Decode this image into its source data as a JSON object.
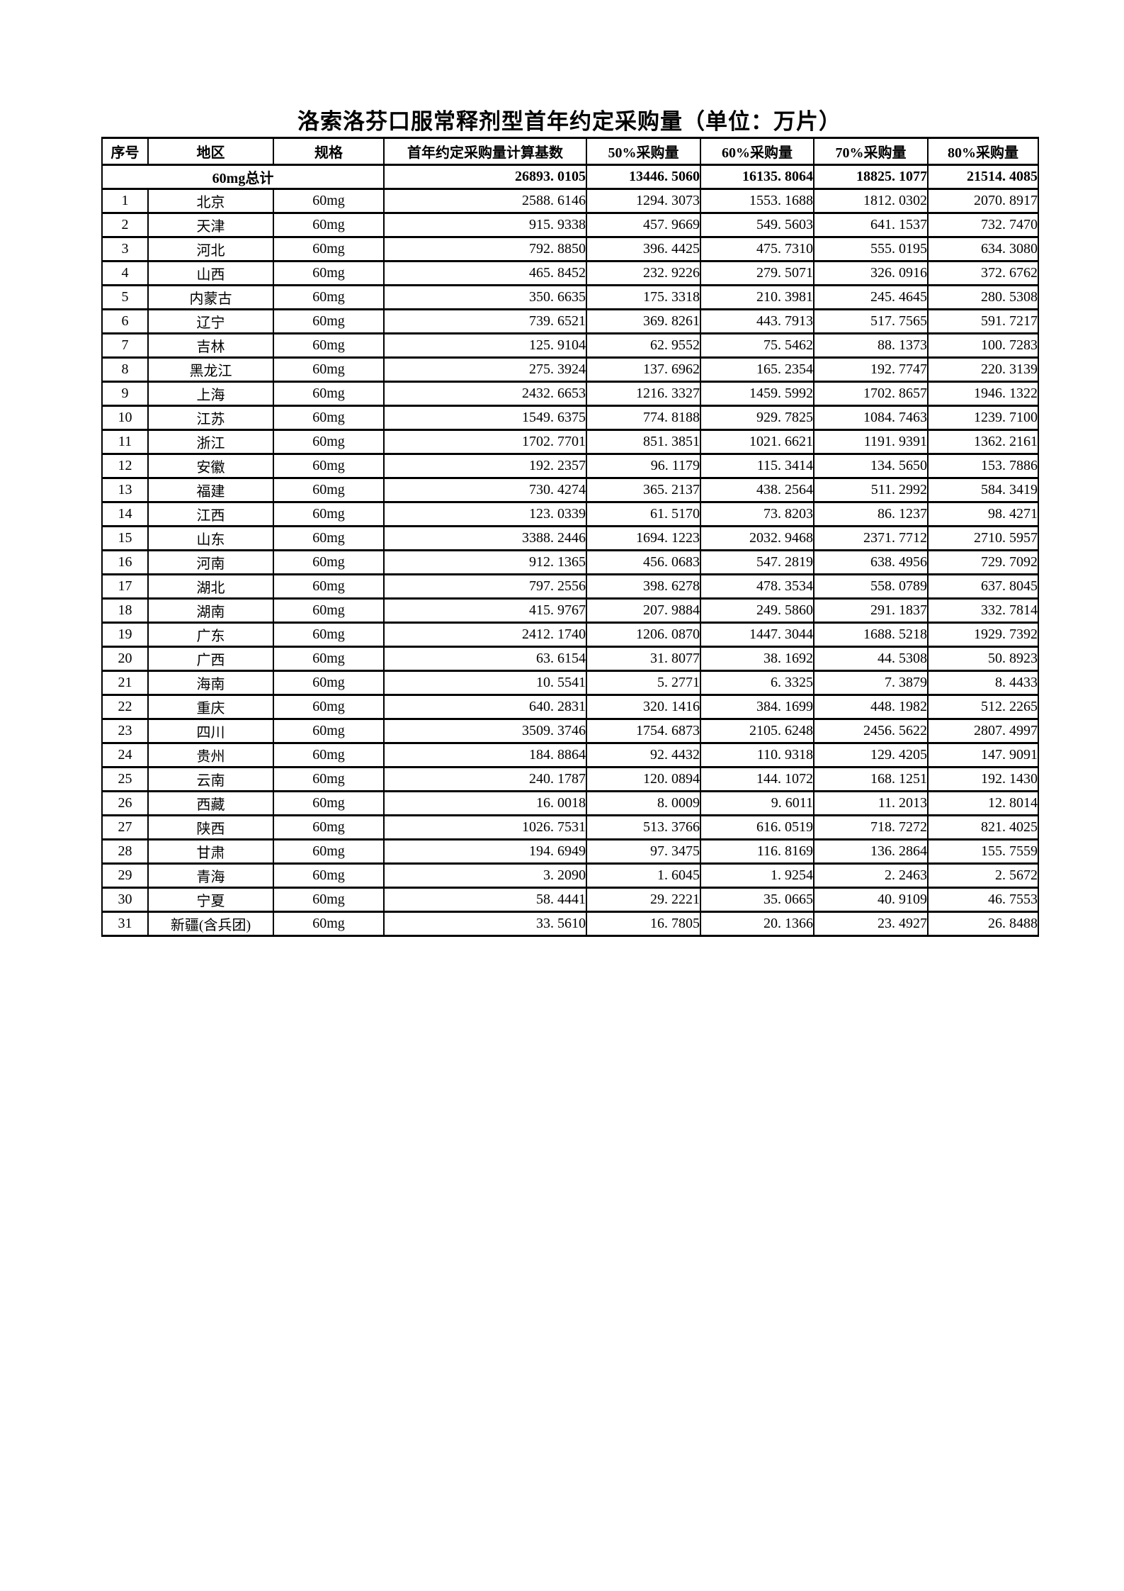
{
  "page": {
    "title": "洛索洛芬口服常释剂型首年约定采购量（单位：万片）"
  },
  "colors": {
    "text": "#000000",
    "background": "#ffffff",
    "border": "#000000"
  },
  "table": {
    "headers": [
      "序号",
      "地区",
      "规格",
      "首年约定采购量计算基数",
      "50%采购量",
      "60%采购量",
      "70%采购量",
      "80%采购量"
    ],
    "total": {
      "label": "60mg总计",
      "values": [
        "26893. 0105",
        "13446. 5060",
        "16135. 8064",
        "18825. 1077",
        "21514. 4085"
      ]
    },
    "rows": [
      {
        "no": "1",
        "region": "北京",
        "spec": "60mg",
        "values": [
          "2588. 6146",
          "1294. 3073",
          "1553. 1688",
          "1812. 0302",
          "2070. 8917"
        ]
      },
      {
        "no": "2",
        "region": "天津",
        "spec": "60mg",
        "values": [
          "915. 9338",
          "457. 9669",
          "549. 5603",
          "641. 1537",
          "732. 7470"
        ]
      },
      {
        "no": "3",
        "region": "河北",
        "spec": "60mg",
        "values": [
          "792. 8850",
          "396. 4425",
          "475. 7310",
          "555. 0195",
          "634. 3080"
        ]
      },
      {
        "no": "4",
        "region": "山西",
        "spec": "60mg",
        "values": [
          "465. 8452",
          "232. 9226",
          "279. 5071",
          "326. 0916",
          "372. 6762"
        ]
      },
      {
        "no": "5",
        "region": "内蒙古",
        "spec": "60mg",
        "values": [
          "350. 6635",
          "175. 3318",
          "210. 3981",
          "245. 4645",
          "280. 5308"
        ]
      },
      {
        "no": "6",
        "region": "辽宁",
        "spec": "60mg",
        "values": [
          "739. 6521",
          "369. 8261",
          "443. 7913",
          "517. 7565",
          "591. 7217"
        ]
      },
      {
        "no": "7",
        "region": "吉林",
        "spec": "60mg",
        "values": [
          "125. 9104",
          "62. 9552",
          "75. 5462",
          "88. 1373",
          "100. 7283"
        ]
      },
      {
        "no": "8",
        "region": "黑龙江",
        "spec": "60mg",
        "values": [
          "275. 3924",
          "137. 6962",
          "165. 2354",
          "192. 7747",
          "220. 3139"
        ]
      },
      {
        "no": "9",
        "region": "上海",
        "spec": "60mg",
        "values": [
          "2432. 6653",
          "1216. 3327",
          "1459. 5992",
          "1702. 8657",
          "1946. 1322"
        ]
      },
      {
        "no": "10",
        "region": "江苏",
        "spec": "60mg",
        "values": [
          "1549. 6375",
          "774. 8188",
          "929. 7825",
          "1084. 7463",
          "1239. 7100"
        ]
      },
      {
        "no": "11",
        "region": "浙江",
        "spec": "60mg",
        "values": [
          "1702. 7701",
          "851. 3851",
          "1021. 6621",
          "1191. 9391",
          "1362. 2161"
        ]
      },
      {
        "no": "12",
        "region": "安徽",
        "spec": "60mg",
        "values": [
          "192. 2357",
          "96. 1179",
          "115. 3414",
          "134. 5650",
          "153. 7886"
        ]
      },
      {
        "no": "13",
        "region": "福建",
        "spec": "60mg",
        "values": [
          "730. 4274",
          "365. 2137",
          "438. 2564",
          "511. 2992",
          "584. 3419"
        ]
      },
      {
        "no": "14",
        "region": "江西",
        "spec": "60mg",
        "values": [
          "123. 0339",
          "61. 5170",
          "73. 8203",
          "86. 1237",
          "98. 4271"
        ]
      },
      {
        "no": "15",
        "region": "山东",
        "spec": "60mg",
        "values": [
          "3388. 2446",
          "1694. 1223",
          "2032. 9468",
          "2371. 7712",
          "2710. 5957"
        ]
      },
      {
        "no": "16",
        "region": "河南",
        "spec": "60mg",
        "values": [
          "912. 1365",
          "456. 0683",
          "547. 2819",
          "638. 4956",
          "729. 7092"
        ]
      },
      {
        "no": "17",
        "region": "湖北",
        "spec": "60mg",
        "values": [
          "797. 2556",
          "398. 6278",
          "478. 3534",
          "558. 0789",
          "637. 8045"
        ]
      },
      {
        "no": "18",
        "region": "湖南",
        "spec": "60mg",
        "values": [
          "415. 9767",
          "207. 9884",
          "249. 5860",
          "291. 1837",
          "332. 7814"
        ]
      },
      {
        "no": "19",
        "region": "广东",
        "spec": "60mg",
        "values": [
          "2412. 1740",
          "1206. 0870",
          "1447. 3044",
          "1688. 5218",
          "1929. 7392"
        ]
      },
      {
        "no": "20",
        "region": "广西",
        "spec": "60mg",
        "values": [
          "63. 6154",
          "31. 8077",
          "38. 1692",
          "44. 5308",
          "50. 8923"
        ]
      },
      {
        "no": "21",
        "region": "海南",
        "spec": "60mg",
        "values": [
          "10. 5541",
          "5. 2771",
          "6. 3325",
          "7. 3879",
          "8. 4433"
        ]
      },
      {
        "no": "22",
        "region": "重庆",
        "spec": "60mg",
        "values": [
          "640. 2831",
          "320. 1416",
          "384. 1699",
          "448. 1982",
          "512. 2265"
        ]
      },
      {
        "no": "23",
        "region": "四川",
        "spec": "60mg",
        "values": [
          "3509. 3746",
          "1754. 6873",
          "2105. 6248",
          "2456. 5622",
          "2807. 4997"
        ]
      },
      {
        "no": "24",
        "region": "贵州",
        "spec": "60mg",
        "values": [
          "184. 8864",
          "92. 4432",
          "110. 9318",
          "129. 4205",
          "147. 9091"
        ]
      },
      {
        "no": "25",
        "region": "云南",
        "spec": "60mg",
        "values": [
          "240. 1787",
          "120. 0894",
          "144. 1072",
          "168. 1251",
          "192. 1430"
        ]
      },
      {
        "no": "26",
        "region": "西藏",
        "spec": "60mg",
        "values": [
          "16. 0018",
          "8. 0009",
          "9. 6011",
          "11. 2013",
          "12. 8014"
        ]
      },
      {
        "no": "27",
        "region": "陕西",
        "spec": "60mg",
        "values": [
          "1026. 7531",
          "513. 3766",
          "616. 0519",
          "718. 7272",
          "821. 4025"
        ]
      },
      {
        "no": "28",
        "region": "甘肃",
        "spec": "60mg",
        "values": [
          "194. 6949",
          "97. 3475",
          "116. 8169",
          "136. 2864",
          "155. 7559"
        ]
      },
      {
        "no": "29",
        "region": "青海",
        "spec": "60mg",
        "values": [
          "3. 2090",
          "1. 6045",
          "1. 9254",
          "2. 2463",
          "2. 5672"
        ]
      },
      {
        "no": "30",
        "region": "宁夏",
        "spec": "60mg",
        "values": [
          "58. 4441",
          "29. 2221",
          "35. 0665",
          "40. 9109",
          "46. 7553"
        ]
      },
      {
        "no": "31",
        "region": "新疆(含兵团)",
        "spec": "60mg",
        "values": [
          "33. 5610",
          "16. 7805",
          "20. 1366",
          "23. 4927",
          "26. 8488"
        ]
      }
    ]
  }
}
